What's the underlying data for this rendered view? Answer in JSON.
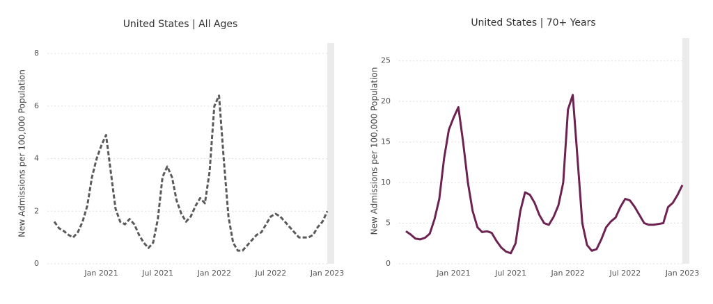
{
  "chart_data": [
    {
      "type": "line",
      "title": "United States | All Ages",
      "y_label": "New Admissions per 100,000 Population",
      "categories": [
        null,
        null,
        null,
        null,
        null,
        null,
        null,
        null,
        null,
        null,
        "Jan 2021",
        null,
        null,
        null,
        null,
        null,
        null,
        null,
        null,
        null,
        null,
        null,
        "Jul 2021",
        null,
        null,
        null,
        null,
        null,
        null,
        null,
        null,
        null,
        null,
        null,
        "Jan 2022",
        null,
        null,
        null,
        null,
        null,
        null,
        null,
        null,
        null,
        null,
        null,
        "Jul 2022",
        null,
        null,
        null,
        null,
        null,
        null,
        null,
        null,
        null,
        null,
        null,
        "Jan 2023"
      ],
      "series": [
        {
          "name": "All Ages",
          "color": "#5a5a5a",
          "dashed": true,
          "values": [
            1.6,
            1.35,
            1.25,
            1.1,
            1.0,
            1.2,
            1.6,
            2.2,
            3.3,
            4.0,
            4.5,
            4.9,
            3.5,
            2.1,
            1.6,
            1.5,
            1.7,
            1.5,
            1.1,
            0.8,
            0.6,
            0.8,
            1.7,
            3.3,
            3.7,
            3.3,
            2.4,
            1.9,
            1.6,
            1.8,
            2.2,
            2.5,
            2.3,
            3.5,
            6.0,
            6.4,
            4.0,
            1.8,
            0.8,
            0.5,
            0.5,
            0.7,
            0.9,
            1.1,
            1.2,
            1.5,
            1.8,
            1.9,
            1.8,
            1.6,
            1.4,
            1.2,
            1.0,
            1.0,
            1.0,
            1.1,
            1.4,
            1.6,
            2.0
          ]
        }
      ],
      "ylim": [
        0,
        8.4
      ],
      "yticks": [
        0,
        2,
        4,
        6,
        8
      ],
      "grid": true
    },
    {
      "type": "line",
      "title": "United States | 70+ Years",
      "y_label": "New Admissions per 100,000 Population",
      "categories": [
        null,
        null,
        null,
        null,
        null,
        null,
        null,
        null,
        null,
        null,
        "Jan 2021",
        null,
        null,
        null,
        null,
        null,
        null,
        null,
        null,
        null,
        null,
        null,
        "Jul 2021",
        null,
        null,
        null,
        null,
        null,
        null,
        null,
        null,
        null,
        null,
        null,
        "Jan 2022",
        null,
        null,
        null,
        null,
        null,
        null,
        null,
        null,
        null,
        null,
        null,
        "Jul 2022",
        null,
        null,
        null,
        null,
        null,
        null,
        null,
        null,
        null,
        null,
        null,
        "Jan 2023"
      ],
      "series": [
        {
          "name": "70+ Years",
          "color": "#6d2352",
          "dashed": false,
          "values": [
            4.0,
            3.6,
            3.1,
            3.0,
            3.2,
            3.7,
            5.5,
            8.0,
            13.0,
            16.5,
            18.0,
            19.3,
            15.0,
            10.0,
            6.5,
            4.5,
            3.9,
            4.0,
            3.8,
            2.8,
            2.0,
            1.5,
            1.3,
            2.5,
            6.5,
            8.8,
            8.5,
            7.5,
            6.0,
            5.0,
            4.8,
            5.8,
            7.2,
            10.0,
            19.0,
            20.8,
            13.0,
            5.0,
            2.3,
            1.6,
            1.8,
            3.0,
            4.5,
            5.2,
            5.7,
            7.0,
            8.0,
            7.8,
            7.0,
            6.0,
            5.0,
            4.8,
            4.8,
            4.9,
            5.0,
            7.0,
            7.5,
            8.5,
            9.7
          ]
        }
      ],
      "ylim": [
        0,
        27.8
      ],
      "yticks": [
        0,
        5,
        10,
        15,
        20,
        25
      ],
      "grid": true
    }
  ]
}
